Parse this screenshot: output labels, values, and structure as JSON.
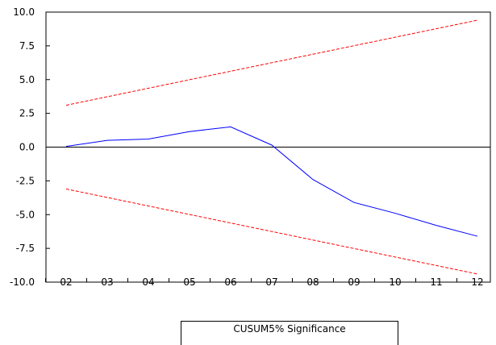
{
  "chart_data": {
    "type": "line",
    "categories": [
      "02",
      "03",
      "04",
      "05",
      "06",
      "07",
      "08",
      "09",
      "10",
      "11",
      "12"
    ],
    "ylim": [
      -10.0,
      10.0
    ],
    "yticks": [
      "10.0",
      "7.5",
      "5.0",
      "2.5",
      "0.0",
      "-2.5",
      "-5.0",
      "-7.5",
      "-10.0"
    ],
    "ytick_values": [
      10,
      7.5,
      5,
      2.5,
      0,
      -2.5,
      -5,
      -7.5,
      -10
    ],
    "grid": false,
    "zero_line": true,
    "series": [
      {
        "name": "CUSUM",
        "style": "solid",
        "color": "#0000ff",
        "values": [
          0.05,
          0.5,
          0.6,
          1.15,
          1.5,
          0.15,
          -2.4,
          -4.1,
          -4.9,
          -5.8,
          -6.6
        ]
      },
      {
        "name": "5% Significance",
        "style": "dashed",
        "color": "#ff0000",
        "values": [
          3.1,
          3.73,
          4.36,
          4.99,
          5.62,
          6.25,
          6.88,
          7.51,
          8.14,
          8.77,
          9.4
        ]
      },
      {
        "name": "",
        "style": "dashed",
        "color": "#ff0000",
        "values": [
          -3.1,
          -3.73,
          -4.36,
          -4.99,
          -5.62,
          -6.25,
          -6.88,
          -7.51,
          -8.14,
          -8.77,
          -9.4
        ]
      }
    ],
    "legend": {
      "placement": "bottom-center",
      "text": "CUSUM5% Significance"
    }
  }
}
